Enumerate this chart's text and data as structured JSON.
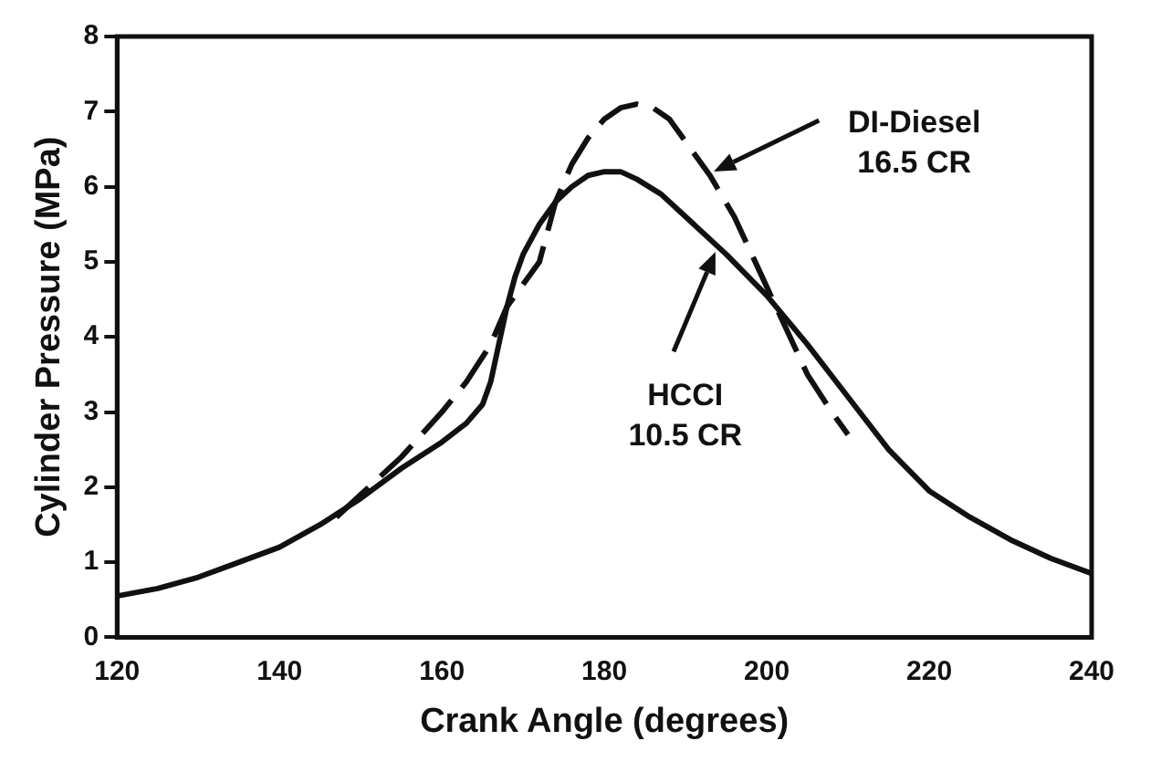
{
  "chart_data": {
    "type": "line",
    "xlabel": "Crank Angle (degrees)",
    "ylabel": "Cylinder Pressure (MPa)",
    "xlim": [
      120,
      240
    ],
    "xticks": [
      120,
      140,
      160,
      180,
      200,
      220,
      240
    ],
    "ylim": [
      0,
      8
    ],
    "yticks": [
      0,
      1,
      2,
      3,
      4,
      5,
      6,
      7,
      8
    ],
    "marker": "none",
    "legend": false,
    "series": [
      {
        "color": "#111111",
        "line_style": "solid",
        "x": [
          120,
          125,
          130,
          135,
          140,
          145,
          150,
          155,
          160,
          163,
          165,
          166,
          167,
          168,
          169,
          170,
          172,
          174,
          176,
          178,
          180,
          182,
          184,
          187,
          190,
          195,
          200,
          205,
          210,
          215,
          220,
          225,
          230,
          235,
          240
        ],
        "values": [
          0.55,
          0.65,
          0.8,
          1.0,
          1.2,
          1.5,
          1.85,
          2.25,
          2.6,
          2.85,
          3.1,
          3.4,
          3.9,
          4.4,
          4.8,
          5.1,
          5.5,
          5.8,
          6.0,
          6.15,
          6.2,
          6.2,
          6.1,
          5.9,
          5.6,
          5.1,
          4.55,
          3.9,
          3.2,
          2.5,
          1.95,
          1.6,
          1.3,
          1.05,
          0.85
        ]
      },
      {
        "color": "#111111",
        "line_style": "dashed",
        "x": [
          147,
          150,
          155,
          160,
          163,
          166,
          168,
          170,
          172,
          174,
          176,
          178,
          180,
          182,
          184,
          186,
          188,
          190,
          193,
          196,
          199,
          202,
          205,
          208,
          210
        ],
        "values": [
          1.6,
          1.9,
          2.4,
          3.0,
          3.4,
          3.9,
          4.4,
          4.7,
          5.0,
          5.8,
          6.3,
          6.65,
          6.9,
          7.05,
          7.1,
          7.05,
          6.9,
          6.6,
          6.15,
          5.6,
          4.9,
          4.2,
          3.5,
          3.0,
          2.7
        ]
      }
    ],
    "annotations": [
      "DI-Diesel 16.5 CR",
      "HCCI 10.5 CR"
    ]
  }
}
